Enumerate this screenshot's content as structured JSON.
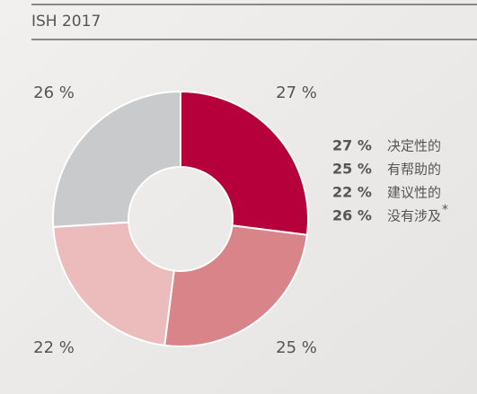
{
  "chart_data": {
    "type": "pie",
    "title": "ISH 2017",
    "categories": [
      "决定性的",
      "有帮助的",
      "建议性的",
      "没有涉及"
    ],
    "values": [
      27,
      25,
      22,
      26
    ],
    "value_labels": [
      "27 %",
      "25 %",
      "22 %",
      "26 %"
    ],
    "colors": [
      "#b5003c",
      "#d98488",
      "#ebbcbb",
      "#c9cacc"
    ],
    "footnote_marker": "*"
  }
}
